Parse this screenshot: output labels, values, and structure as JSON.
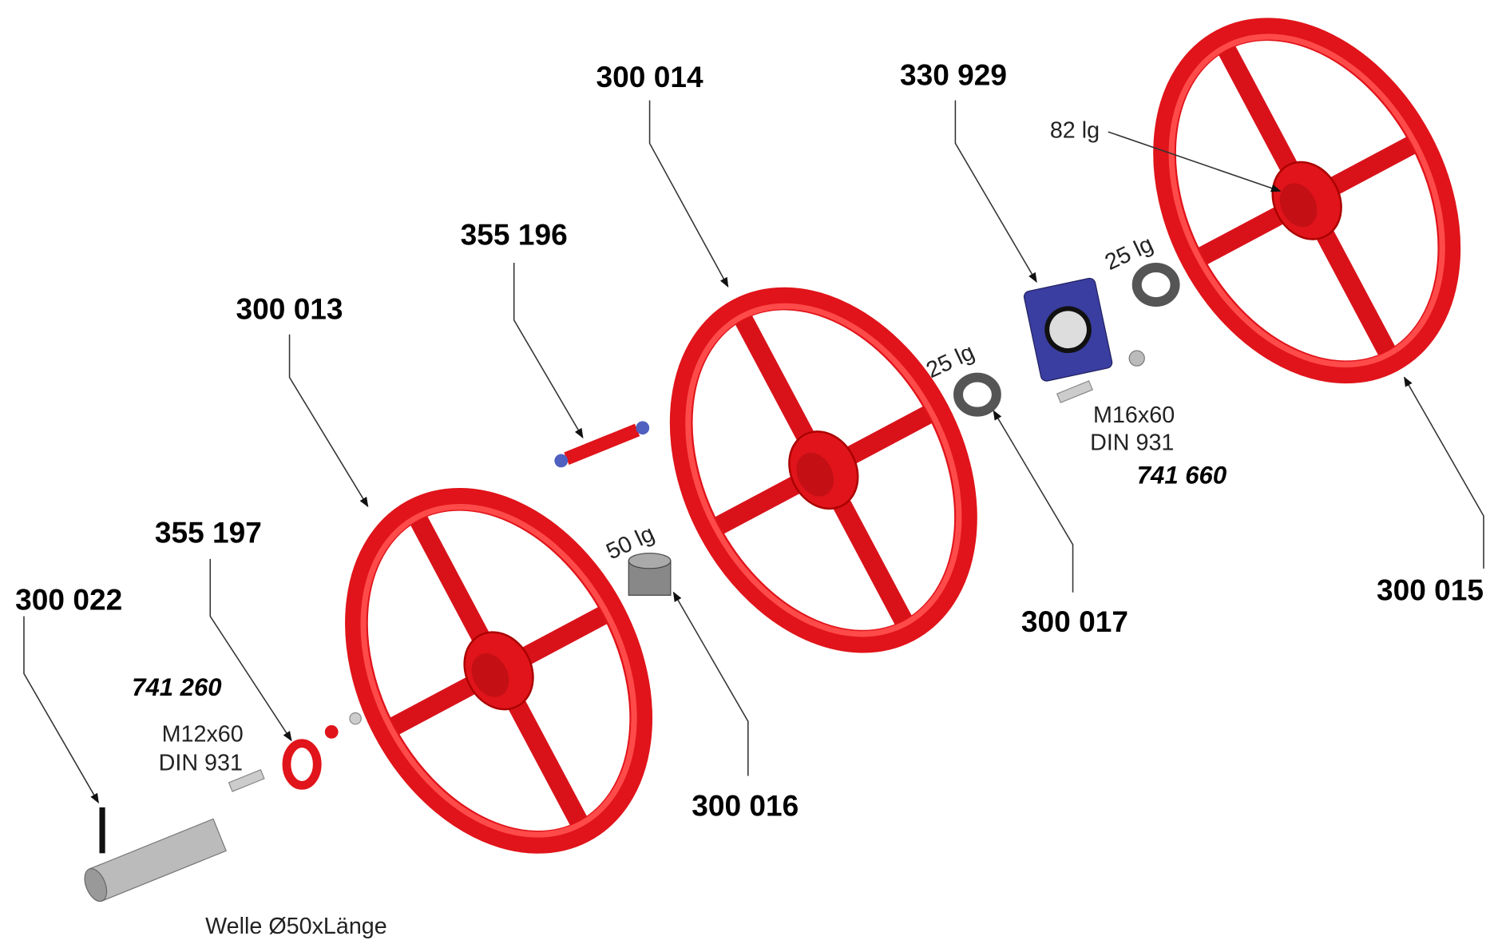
{
  "parts": [
    {
      "label": "300 014"
    },
    {
      "label": "330 929"
    },
    {
      "label": "355 196"
    },
    {
      "label": "300 013"
    },
    {
      "label": "355 197"
    },
    {
      "label": "300 015"
    },
    {
      "label": "300 022"
    },
    {
      "label": "300 017"
    },
    {
      "label": "300 016"
    }
  ],
  "annotations": [
    {
      "label": "82 lg"
    },
    {
      "label": "25 lg"
    },
    {
      "label": "25 lg"
    },
    {
      "label": "M16x60"
    },
    {
      "label": "DIN 931"
    },
    {
      "label": "741 660"
    },
    {
      "label": "50 lg"
    },
    {
      "label": "741 260"
    },
    {
      "label": "M12x60"
    },
    {
      "label": "DIN 931"
    },
    {
      "label": "Welle Ø50xLänge"
    }
  ]
}
